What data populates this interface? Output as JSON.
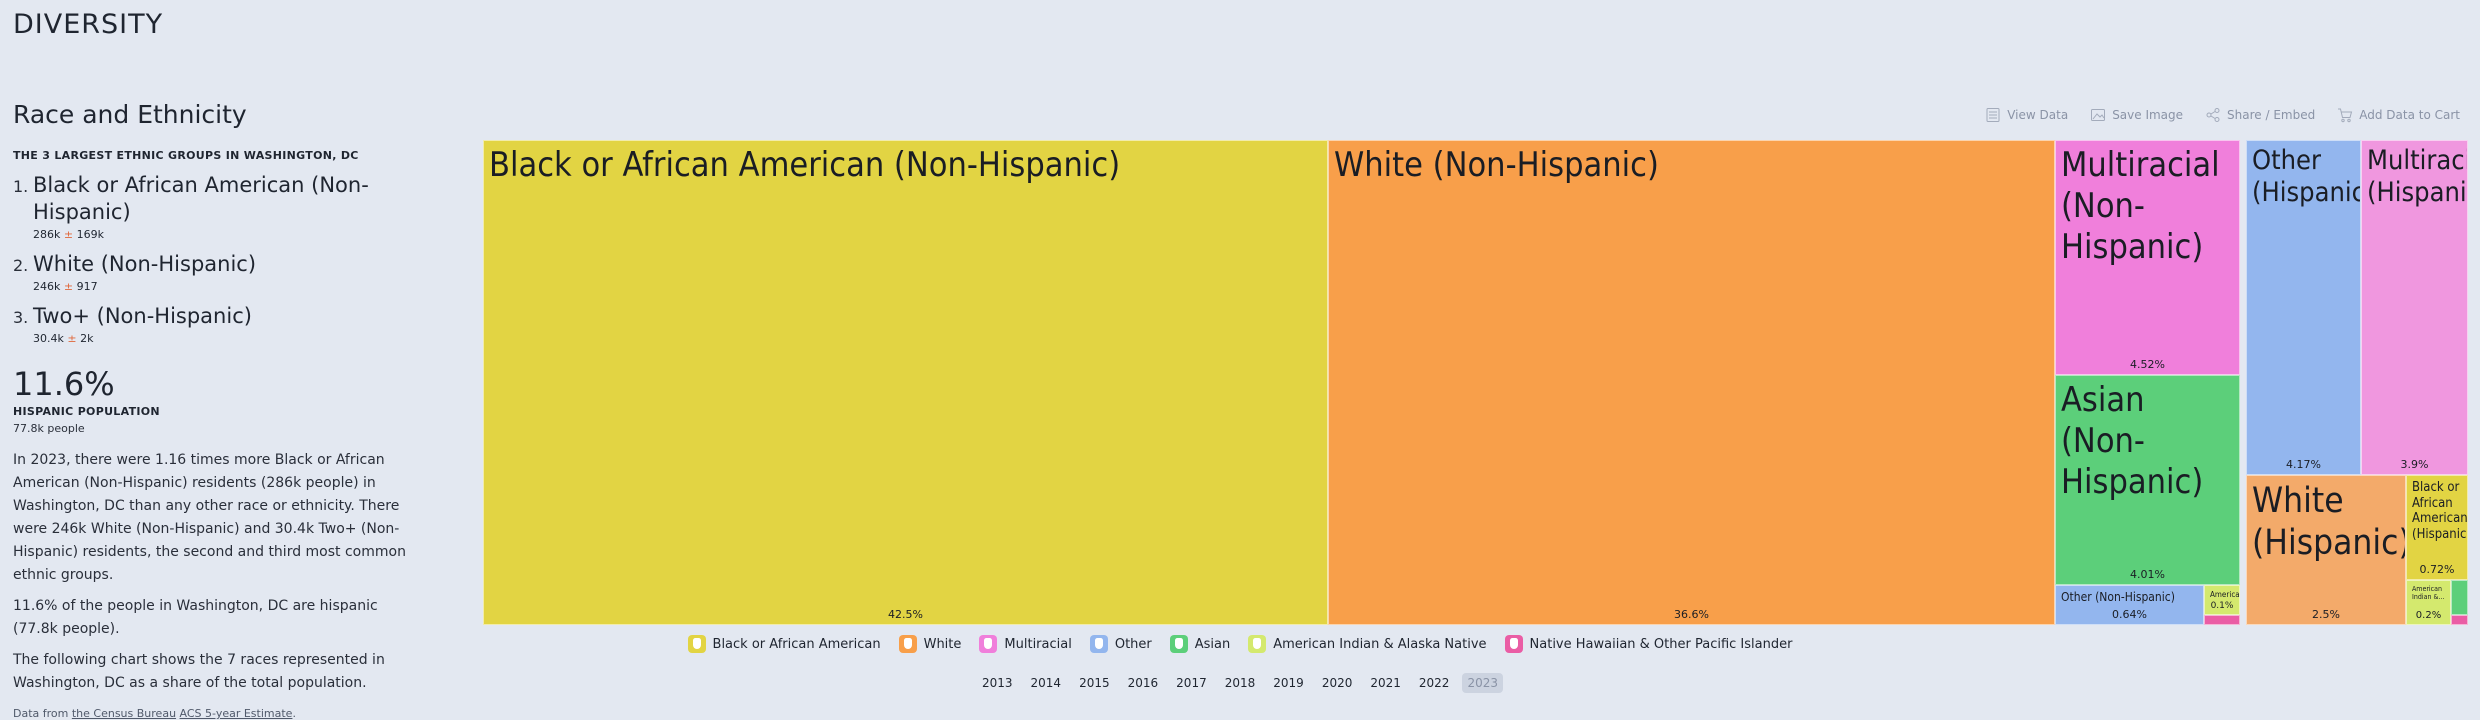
{
  "section_title": "DIVERSITY",
  "viz_title": "Race and Ethnicity",
  "largest_header": "THE 3 LARGEST ETHNIC GROUPS IN WASHINGTON, DC",
  "top3": [
    {
      "rank": "1.",
      "name": "Black or African American (Non-Hispanic)",
      "value": "286k",
      "moe": "169k"
    },
    {
      "rank": "2.",
      "name": "White (Non-Hispanic)",
      "value": "246k",
      "moe": "917"
    },
    {
      "rank": "3.",
      "name": "Two+ (Non-Hispanic)",
      "value": "30.4k",
      "moe": "2k"
    }
  ],
  "pm_symbol": "±",
  "hispanic": {
    "value": "11.6%",
    "label": "HISPANIC POPULATION",
    "sub": "77.8k people"
  },
  "paragraphs": [
    "In 2023, there were 1.16 times more Black or African American (Non-Hispanic) residents (286k people) in Washington, DC than any other race or ethnicity. There were 246k White (Non-Hispanic) and 30.4k Two+ (Non-Hispanic) residents, the second and third most common ethnic groups.",
    "11.6% of the people in Washington, DC are hispanic (77.8k people).",
    "The following chart shows the 7 races represented in Washington, DC as a share of the total population."
  ],
  "source": {
    "prefix": "Data from ",
    "link1": "the Census Bureau",
    "link2": "ACS 5-year Estimate",
    "suffix": "."
  },
  "toolbar": {
    "view_data": "View Data",
    "save_image": "Save Image",
    "share": "Share / Embed",
    "cart": "Add Data to Cart"
  },
  "colors": {
    "black": "#e2d443",
    "white": "#f89f4a",
    "multiracial": "#f07fdb",
    "other": "#93b6ee",
    "asian": "#5ccf7a",
    "native": "#d4e96e",
    "pacific": "#ea5da5",
    "multiracial_hisp": "#f097df",
    "white_hisp": "#f3aa6a"
  },
  "chart_data": {
    "type": "treemap",
    "unit": "% of total population",
    "cells": [
      {
        "label": "Black or African American (Non-Hispanic)",
        "pct_label": "42.5%",
        "value": 42.5,
        "group": "black"
      },
      {
        "label": "White (Non-Hispanic)",
        "pct_label": "36.6%",
        "value": 36.6,
        "group": "white"
      },
      {
        "label": "Multiracial (Non-Hispanic)",
        "pct_label": "4.52%",
        "value": 4.52,
        "group": "multiracial"
      },
      {
        "label": "Asian (Non-Hispanic)",
        "pct_label": "4.01%",
        "value": 4.01,
        "group": "asian"
      },
      {
        "label": "Other (Non-Hispanic)",
        "pct_label": "0.64%",
        "value": 0.64,
        "group": "other"
      },
      {
        "label": "American...",
        "pct_label": "0.1%",
        "value": 0.1,
        "group": "native"
      },
      {
        "label": "",
        "pct_label": "",
        "value": 0.05,
        "group": "pacific"
      },
      {
        "label": "Other (Hispanic)",
        "pct_label": "4.17%",
        "value": 4.17,
        "group": "other"
      },
      {
        "label": "Multiracial (Hispanic)",
        "pct_label": "3.9%",
        "value": 3.9,
        "group": "multiracial_hisp"
      },
      {
        "label": "White (Hispanic)",
        "pct_label": "2.5%",
        "value": 2.5,
        "group": "white_hisp"
      },
      {
        "label": "Black or African American (Hispanic)",
        "pct_label": "0.72%",
        "value": 0.72,
        "group": "black"
      },
      {
        "label": "American Indian &...",
        "pct_label": "0.2%",
        "value": 0.2,
        "group": "native"
      },
      {
        "label": "",
        "pct_label": "",
        "value": 0.1,
        "group": "asian"
      },
      {
        "label": "",
        "pct_label": "",
        "value": 0.02,
        "group": "pacific"
      }
    ]
  },
  "legend": [
    {
      "label": "Black or African American",
      "color": "#e2d443"
    },
    {
      "label": "White",
      "color": "#f89f4a"
    },
    {
      "label": "Multiracial",
      "color": "#f07fdb"
    },
    {
      "label": "Other",
      "color": "#93b6ee"
    },
    {
      "label": "Asian",
      "color": "#5ccf7a"
    },
    {
      "label": "American Indian & Alaska Native",
      "color": "#d4e96e"
    },
    {
      "label": "Native Hawaiian & Other Pacific Islander",
      "color": "#ea5da5"
    }
  ],
  "years": [
    "2013",
    "2014",
    "2015",
    "2016",
    "2017",
    "2018",
    "2019",
    "2020",
    "2021",
    "2022",
    "2023"
  ],
  "active_year": "2023"
}
